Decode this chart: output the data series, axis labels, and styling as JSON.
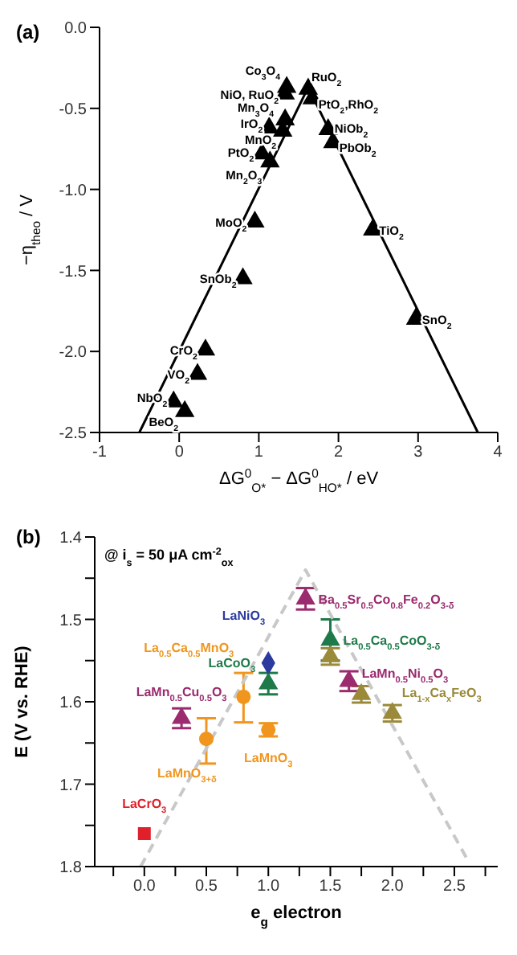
{
  "chart_data": [
    {
      "type": "scatter",
      "title": "(a)",
      "xlabel": "ΔG$^{0}$$_{O*}$ − ΔG$^{0}$$_{HO*}$ / eV",
      "ylabel": "−η$_{theo}$ / V",
      "xlim": [
        -1,
        4
      ],
      "ylim": [
        -2.5,
        0
      ],
      "xticks": [
        -1,
        0,
        1,
        2,
        3,
        4
      ],
      "yticks": [
        {
          "value": 0,
          "label": "0.0"
        },
        {
          "value": -0.5,
          "label": "-0.5"
        },
        {
          "value": -1,
          "label": "-1.0"
        },
        {
          "value": -1.5,
          "label": "-1.5"
        },
        {
          "value": -2,
          "label": "-2.0"
        },
        {
          "value": -2.5,
          "label": "-2.5"
        }
      ],
      "series": [
        {
          "color": "#000000",
          "marker": "triangle",
          "x": [
            1.35,
            1.33,
            1.62,
            1.67,
            1.33,
            1.13,
            1.3,
            1.04,
            1.14,
            1.87,
            1.93,
            0.95,
            2.43,
            0.8,
            2.97,
            0.33,
            0.23,
            -0.07,
            0.07
          ],
          "values": [
            -0.37,
            -0.41,
            -0.38,
            -0.44,
            -0.57,
            -0.62,
            -0.64,
            -0.78,
            -0.83,
            -0.63,
            -0.71,
            -1.2,
            -1.25,
            -1.55,
            -1.8,
            -1.99,
            -2.14,
            -2.31,
            -2.37
          ]
        },
        {
          "type": "line",
          "color": "#000000",
          "x": [
            -0.5,
            1.62,
            3.75
          ],
          "values": [
            -2.5,
            -0.37,
            -2.5
          ]
        }
      ],
      "annotations": [
        {
          "text": "Co$_{3}$O$_{4}$",
          "x": 1.35,
          "y": -0.37
        },
        {
          "text": "NiO, RuO$_{2}$",
          "x": 1.33,
          "y": -0.41
        },
        {
          "text": "RuO$_{2}$",
          "x": 1.62,
          "y": -0.38
        },
        {
          "text": "PtO$_{2}$,RhO$_{2}$",
          "x": 1.67,
          "y": -0.44
        },
        {
          "text": "Mn$_{3}$O$_{4}$",
          "x": 1.33,
          "y": -0.57
        },
        {
          "text": "IrO$_{2}$",
          "x": 1.13,
          "y": -0.62
        },
        {
          "text": "MnO$_{2}$",
          "x": 1.3,
          "y": -0.64
        },
        {
          "text": "PtO$_{2}$",
          "x": 1.04,
          "y": -0.78
        },
        {
          "text": "Mn$_{2}$O$_{3}$",
          "x": 1.14,
          "y": -0.83
        },
        {
          "text": "NiOb$_{2}$",
          "x": 1.87,
          "y": -0.63
        },
        {
          "text": "PbOb$_{2}$",
          "x": 1.93,
          "y": -0.71
        },
        {
          "text": "MoO$_{2}$",
          "x": 0.95,
          "y": -1.2
        },
        {
          "text": "TiO$_{2}$",
          "x": 2.43,
          "y": -1.25
        },
        {
          "text": "SnOb$_{2}$",
          "x": 0.8,
          "y": -1.55
        },
        {
          "text": "SnO$_{2}$",
          "x": 2.97,
          "y": -1.8
        },
        {
          "text": "CrO$_{2}$",
          "x": 0.33,
          "y": -1.99
        },
        {
          "text": "VO$_{2}$",
          "x": 0.23,
          "y": -2.14
        },
        {
          "text": "NbO$_{2}$",
          "x": -0.07,
          "y": -2.31
        },
        {
          "text": "BeO$_{2}$",
          "x": 0.07,
          "y": -2.37
        }
      ]
    },
    {
      "type": "scatter",
      "title": "(b)",
      "xlabel": "e$_{g}$ electron",
      "ylabel": "E (V vs. RHE)",
      "xlim": [
        -0.4,
        2.85
      ],
      "ylim": [
        1.8,
        1.4
      ],
      "xticks": [
        {
          "value": -0.25,
          "label": null
        },
        {
          "value": 0,
          "label": "0.0"
        },
        {
          "value": 0.25,
          "label": null
        },
        {
          "value": 0.5,
          "label": "0.5"
        },
        {
          "value": 0.75,
          "label": null
        },
        {
          "value": 1,
          "label": "1.0"
        },
        {
          "value": 1.25,
          "label": null
        },
        {
          "value": 1.5,
          "label": "1.5"
        },
        {
          "value": 1.75,
          "label": null
        },
        {
          "value": 2,
          "label": "2.0"
        },
        {
          "value": 2.25,
          "label": null
        },
        {
          "value": 2.5,
          "label": "2.5"
        },
        {
          "value": 2.75,
          "label": null
        }
      ],
      "yticks": [
        1.4,
        {
          "value": 1.45,
          "label": null
        },
        1.5,
        {
          "value": 1.55,
          "label": null
        },
        1.6,
        {
          "value": 1.65,
          "label": null
        },
        1.7,
        {
          "value": 1.75,
          "label": null
        },
        1.8
      ],
      "annotations": [
        "@ i$_{s}$ = 50 μA cm$^{-2}$$_{ox}$"
      ],
      "series": [
        {
          "name": "LaCrO$_{3}$",
          "color": "#e0202a",
          "marker": "square",
          "x": [
            0
          ],
          "values": [
            1.76
          ]
        },
        {
          "name": "LaMn$_{0.5}$Cu$_{0.5}$O$_{3}$",
          "color": "#9b2a6e",
          "marker": "triangle",
          "x": [
            0.3
          ],
          "values": [
            1.62
          ],
          "errors": [
            0.012
          ]
        },
        {
          "name": "LaMnO$_{3+δ}$",
          "color": "#f0961e",
          "marker": "circle",
          "x": [
            0.5
          ],
          "values": [
            1.645
          ],
          "errors": [
            [
              1.62,
              1.675
            ]
          ]
        },
        {
          "name": "La$_{0.5}$Ca$_{0.5}$MnO$_{3}$",
          "color": "#f0961e",
          "marker": "circle",
          "x": [
            0.8
          ],
          "values": [
            1.594
          ],
          "errors": [
            [
              1.565,
              1.625
            ]
          ]
        },
        {
          "name": "LaMnO$_{3}$",
          "color": "#f0961e",
          "marker": "circle",
          "x": [
            1
          ],
          "values": [
            1.634
          ],
          "errors": [
            0.008
          ]
        },
        {
          "name": "LaNiO$_{3}$",
          "color": "#2a3a9e",
          "marker": "diamond",
          "x": [
            1
          ],
          "values": [
            1.553
          ]
        },
        {
          "name": "LaCoO$_{3}$",
          "color": "#1f7a4a",
          "marker": "triangle",
          "x": [
            1
          ],
          "values": [
            1.578
          ],
          "errors": [
            0.013
          ]
        },
        {
          "name": "Ba$_{0.5}$Sr$_{0.5}$Co$_{0.8}$Fe$_{0.2}$O$_{3-δ}$",
          "color": "#9b2a6e",
          "marker": "triangle",
          "x": [
            1.3
          ],
          "values": [
            1.475
          ],
          "errors": [
            0.013
          ]
        },
        {
          "name": "La$_{0.5}$Ca$_{0.5}$CoO$_{3-δ}$",
          "color": "#1f7a4a",
          "marker": "triangle",
          "x": [
            1.5
          ],
          "values": [
            1.525
          ],
          "errors": [
            0.025
          ]
        },
        {
          "name": "LaMn$_{0.5}$Ni$_{0.5}$O$_{3}$",
          "color": "#9b2a6e",
          "marker": "triangle",
          "x": [
            1.65
          ],
          "values": [
            1.575
          ],
          "errors": [
            0.012
          ]
        },
        {
          "name": "La$_{1-x}$Ca$_{x}$FeO$_{3}$",
          "color": "#9a8a3a",
          "marker": "triangle",
          "x": [
            1.5,
            1.75,
            2
          ],
          "values": [
            1.545,
            1.591,
            1.614
          ],
          "errors": [
            0.01,
            0.01,
            0.01
          ]
        },
        {
          "type": "line",
          "color": "#c8c8c8",
          "line_style": "dashed",
          "x": [
            -0.03,
            1.3,
            2.6
          ],
          "values": [
            1.8,
            1.44,
            1.79
          ]
        }
      ]
    }
  ]
}
